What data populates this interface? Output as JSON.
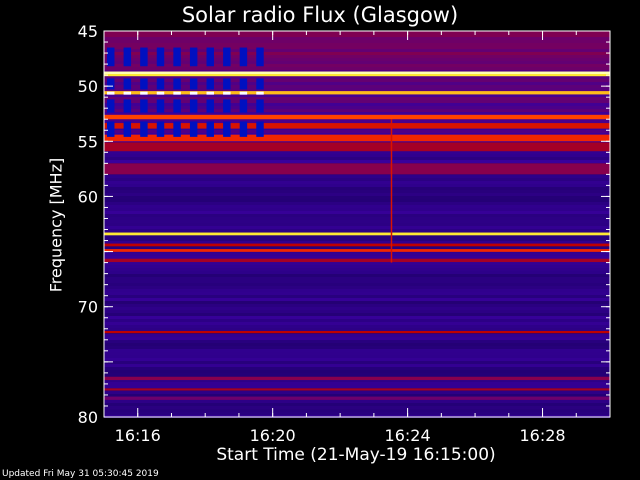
{
  "chart_data": {
    "type": "heatmap",
    "title": "Solar radio Flux (Glasgow)",
    "xlabel": "Start Time (21-May-19 16:15:00)",
    "ylabel": "Frequency [MHz]",
    "start_time": "16:15:00",
    "end_time": "16:30:00",
    "x_ticks": [
      "16:16",
      "16:20",
      "16:24",
      "16:28"
    ],
    "y_ticks": [
      45,
      50,
      55,
      60,
      65,
      70,
      75,
      80
    ],
    "y_tick_labels": [
      "45",
      "50",
      "55",
      "60",
      "",
      "70",
      "",
      "80"
    ],
    "ylim": [
      80,
      45
    ],
    "colormap": [
      "#000000",
      "#1a0060",
      "#3a00a0",
      "#7a0060",
      "#c00000",
      "#ff3000",
      "#ff9000",
      "#ffff40",
      "#ffffff"
    ],
    "background_level": 0.2,
    "bands": [
      {
        "freq": 48.8,
        "intensity": 0.95,
        "width": 0.25
      },
      {
        "freq": 49.0,
        "intensity": 0.85,
        "width": 0.2
      },
      {
        "freq": 50.6,
        "intensity": 0.8,
        "width": 0.3
      },
      {
        "freq": 52.8,
        "intensity": 0.65,
        "width": 0.4
      },
      {
        "freq": 53.6,
        "intensity": 0.55,
        "width": 0.5
      },
      {
        "freq": 54.7,
        "intensity": 0.6,
        "width": 0.6
      },
      {
        "freq": 55.5,
        "intensity": 0.45,
        "width": 0.8
      },
      {
        "freq": 57.5,
        "intensity": 0.4,
        "width": 1.0
      },
      {
        "freq": 63.4,
        "intensity": 0.85,
        "width": 0.25
      },
      {
        "freq": 64.4,
        "intensity": 0.5,
        "width": 0.25
      },
      {
        "freq": 64.9,
        "intensity": 0.6,
        "width": 0.25
      },
      {
        "freq": 65.8,
        "intensity": 0.45,
        "width": 0.3
      },
      {
        "freq": 72.3,
        "intensity": 0.5,
        "width": 0.2
      },
      {
        "freq": 76.5,
        "intensity": 0.4,
        "width": 0.3
      },
      {
        "freq": 77.5,
        "intensity": 0.45,
        "width": 0.2
      },
      {
        "freq": 78.3,
        "intensity": 0.35,
        "width": 0.3
      }
    ],
    "calibration_period": {
      "start": "16:15:00",
      "end": "16:19:55",
      "columns": 10
    },
    "bursts": [
      {
        "time": "16:23:30",
        "intensity": 0.55
      }
    ],
    "grid": false,
    "legend": "none"
  },
  "footer": "Updated Fri May 31 05:30:45 2019"
}
